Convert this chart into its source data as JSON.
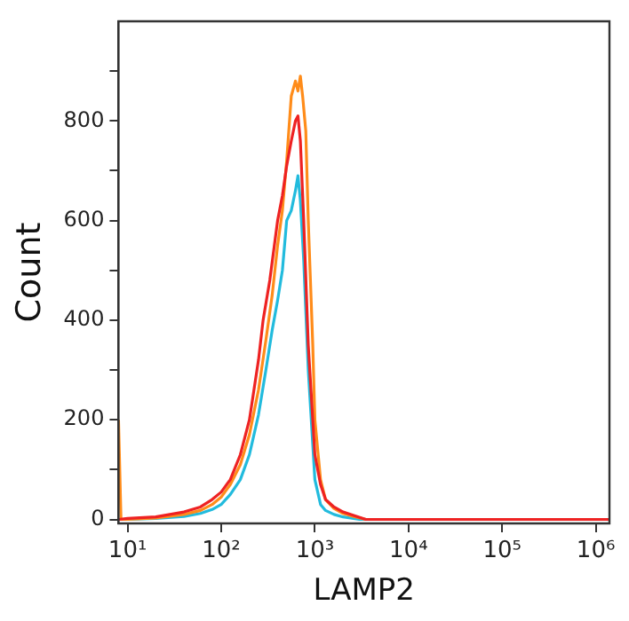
{
  "chart_data": {
    "type": "line",
    "xlabel": "LAMP2",
    "ylabel": "Count",
    "log": "x",
    "grid": false,
    "legend": false,
    "marker": "none",
    "line_style": "solid",
    "xlim": [
      8,
      1400000
    ],
    "ylim": [
      -8,
      1000
    ],
    "xticks": [
      {
        "value": 10,
        "label": "10¹"
      },
      {
        "value": 100,
        "label": "10²"
      },
      {
        "value": 1000,
        "label": "10³"
      },
      {
        "value": 10000,
        "label": "10⁴"
      },
      {
        "value": 100000,
        "label": "10⁵"
      },
      {
        "value": 1000000,
        "label": "10⁶"
      }
    ],
    "yticks": [
      0,
      {
        "value": 100,
        "label": null
      },
      200,
      {
        "value": 300,
        "label": null
      },
      400,
      {
        "value": 500,
        "label": null
      },
      600,
      {
        "value": 700,
        "label": null
      },
      800,
      {
        "value": 900,
        "label": null
      }
    ],
    "series": [
      {
        "color": "#ee2222",
        "x": [
          8,
          10,
          20,
          40,
          60,
          80,
          100,
          125,
          160,
          200,
          250,
          280,
          330,
          400,
          450,
          500,
          560,
          620,
          660,
          700,
          760,
          850,
          950,
          1000,
          1150,
          1300,
          1600,
          2000,
          2600,
          3500,
          10000,
          1400000
        ],
        "values": [
          0,
          2,
          5,
          15,
          25,
          40,
          55,
          80,
          130,
          200,
          320,
          400,
          480,
          600,
          650,
          710,
          760,
          800,
          810,
          760,
          600,
          350,
          200,
          130,
          70,
          40,
          25,
          15,
          8,
          0,
          0,
          0
        ]
      },
      {
        "color": "#ff8c1a",
        "x": [
          8,
          8.5,
          10,
          20,
          40,
          60,
          80,
          100,
          125,
          160,
          200,
          250,
          300,
          350,
          400,
          450,
          500,
          560,
          620,
          660,
          700,
          740,
          800,
          850,
          950,
          1000,
          1150,
          1300,
          1600,
          2000,
          2600,
          3500,
          10000,
          1400000
        ],
        "values": [
          200,
          0,
          0,
          3,
          10,
          18,
          30,
          45,
          70,
          110,
          170,
          260,
          360,
          450,
          550,
          620,
          720,
          850,
          880,
          860,
          890,
          850,
          780,
          600,
          350,
          200,
          80,
          40,
          22,
          12,
          6,
          0,
          0,
          0
        ]
      },
      {
        "color": "#22bbdd",
        "x": [
          8,
          10,
          20,
          40,
          60,
          80,
          100,
          125,
          160,
          200,
          250,
          300,
          350,
          400,
          450,
          500,
          560,
          620,
          660,
          700,
          760,
          850,
          950,
          1000,
          1150,
          1300,
          1600,
          2000,
          3000,
          10000,
          1400000
        ],
        "values": [
          0,
          0,
          2,
          6,
          12,
          20,
          30,
          50,
          80,
          130,
          210,
          300,
          380,
          440,
          500,
          600,
          620,
          660,
          690,
          640,
          520,
          300,
          150,
          80,
          30,
          18,
          10,
          5,
          0,
          0,
          0
        ]
      }
    ]
  }
}
